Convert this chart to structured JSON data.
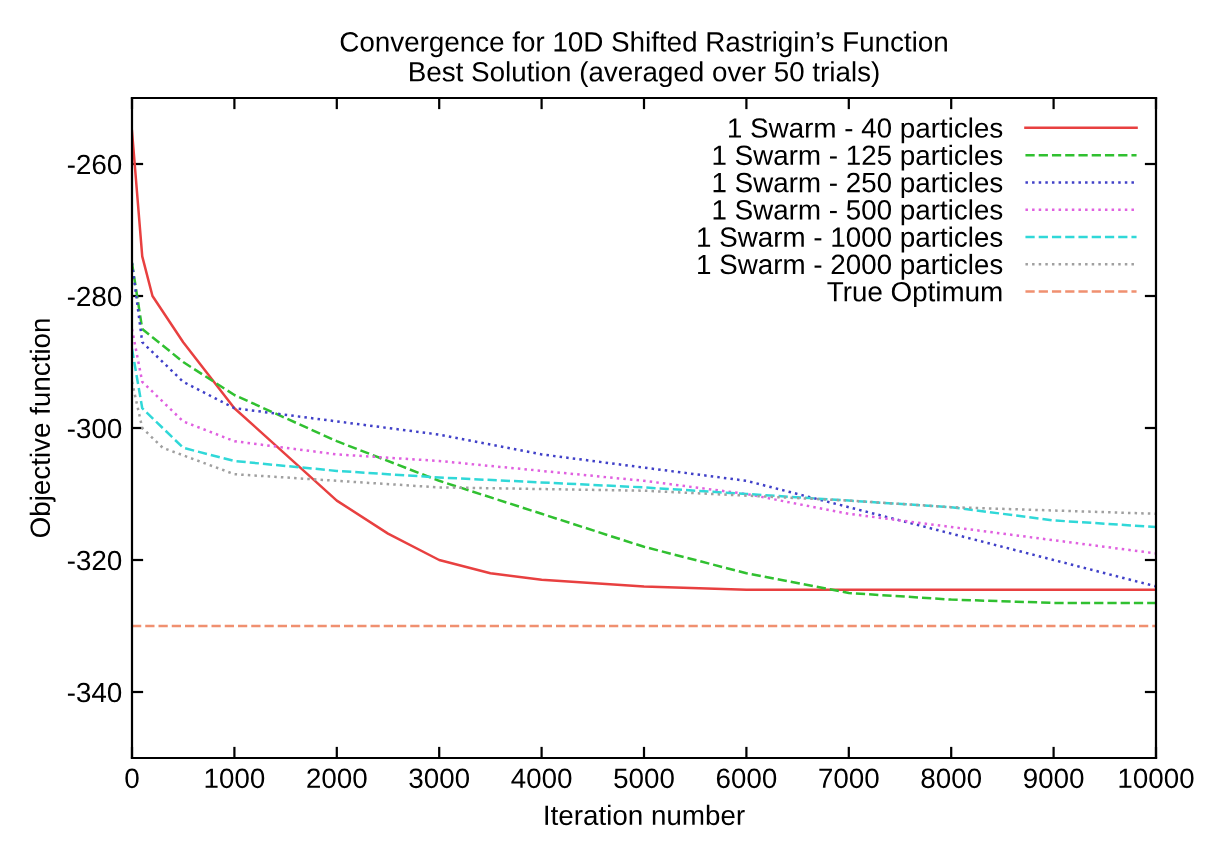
{
  "chart_data": {
    "type": "line",
    "title": "Convergence for 10D Shifted Rastrigin’s Function\nBest Solution (averaged over 50 trials)",
    "xlabel": "Iteration number",
    "ylabel": "Objective function",
    "xlim": [
      0,
      10000
    ],
    "xticks": [
      0,
      1000,
      2000,
      3000,
      4000,
      5000,
      6000,
      7000,
      8000,
      9000,
      10000
    ],
    "ylim": [
      -350,
      -250
    ],
    "yticks": [
      -340,
      -320,
      -300,
      -280,
      -260
    ],
    "grid": false,
    "legend": "top right",
    "marker": "none",
    "series": [
      {
        "name": "1 Swarm - 40 particles",
        "color": "#e84040",
        "line_style": "solid",
        "x": [
          0,
          100,
          200,
          500,
          1000,
          1500,
          2000,
          2500,
          3000,
          3500,
          4000,
          5000,
          6000,
          8000,
          10000
        ],
        "values": [
          -255,
          -274,
          -280,
          -287,
          -297,
          -304,
          -311,
          -316,
          -320,
          -322,
          -323,
          -324,
          -324.5,
          -324.5,
          -324.5
        ]
      },
      {
        "name": "1 Swarm - 125 particles",
        "color": "#30c030",
        "line_style": "dashed",
        "x": [
          0,
          100,
          500,
          1000,
          2000,
          3000,
          4000,
          5000,
          6000,
          7000,
          8000,
          9000,
          10000
        ],
        "values": [
          -275,
          -285,
          -290,
          -295,
          -302,
          -308,
          -313,
          -318,
          -322,
          -325,
          -326,
          -326.5,
          -326.5
        ]
      },
      {
        "name": "1 Swarm - 250 particles",
        "color": "#4040c8",
        "line_style": "dotted",
        "x": [
          0,
          100,
          500,
          1000,
          2000,
          3000,
          4000,
          5000,
          6000,
          7000,
          8000,
          9000,
          10000
        ],
        "values": [
          -275,
          -287,
          -293,
          -297,
          -299,
          -301,
          -304,
          -306,
          -308,
          -312,
          -316,
          -320,
          -324
        ]
      },
      {
        "name": "1 Swarm - 500 particles",
        "color": "#e060e0",
        "line_style": "dotted",
        "x": [
          0,
          100,
          500,
          1000,
          2000,
          3000,
          5000,
          6000,
          7000,
          8000,
          9000,
          10000
        ],
        "values": [
          -285,
          -293,
          -299,
          -302,
          -304,
          -305,
          -308,
          -310,
          -313,
          -315,
          -317,
          -319
        ]
      },
      {
        "name": "1 Swarm - 1000 particles",
        "color": "#30d8d8",
        "line_style": "dashed",
        "x": [
          0,
          100,
          500,
          1000,
          2000,
          3000,
          5000,
          6000,
          7000,
          8000,
          9000,
          10000
        ],
        "values": [
          -288,
          -297,
          -303,
          -305,
          -306.5,
          -307.5,
          -309,
          -310,
          -311,
          -312,
          -314,
          -315
        ]
      },
      {
        "name": "1 Swarm - 2000 particles",
        "color": "#a0a0a0",
        "line_style": "dotted",
        "x": [
          0,
          100,
          300,
          1000,
          2000,
          3000,
          5000,
          7000,
          8000,
          10000
        ],
        "values": [
          -293,
          -300,
          -303,
          -307,
          -308,
          -309,
          -309.5,
          -311,
          -312,
          -313
        ]
      },
      {
        "name": "True Optimum",
        "color": "#f09070",
        "line_style": "dashed",
        "x": [
          0,
          10000
        ],
        "values": [
          -330,
          -330
        ]
      }
    ]
  }
}
